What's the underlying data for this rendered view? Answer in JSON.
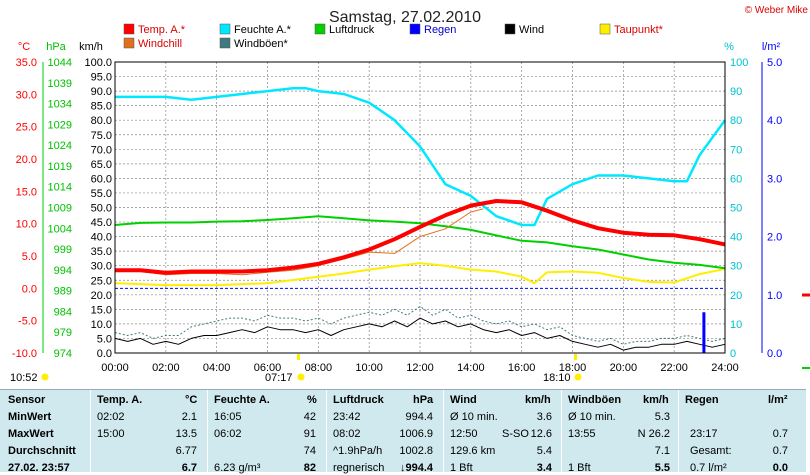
{
  "title": "Samstag, 27.02.2010",
  "copyright": "© Weber Mike",
  "colors": {
    "temp": "#ff0000",
    "windchill": "#e07020",
    "humidity": "#00e8ff",
    "pressure": "#00d000",
    "rain": "#0000ff",
    "wind": "#000000",
    "dewpoint": "#ffee00",
    "gust": "#3f7a80"
  },
  "axis_units": {
    "temp": "°C",
    "pressure": "hPa",
    "wind": "km/h",
    "humidity": "%",
    "rain": "l/m²"
  },
  "legend": [
    {
      "label": "Temp. A.*",
      "color": "#ff0000"
    },
    {
      "label": "Feuchte A.*",
      "color": "#00e8ff"
    },
    {
      "label": "Luftdruck",
      "color": "#00d000"
    },
    {
      "label": "Regen",
      "color": "#0000ff"
    },
    {
      "label": "Wind",
      "color": "#000000"
    },
    {
      "label": "Taupunkt*",
      "color": "#ffee00"
    },
    {
      "label": "Windchill",
      "color": "#e07020"
    },
    {
      "label": "Windböen*",
      "color": "#3f7a80"
    }
  ],
  "sun": {
    "sunrise_marker": "07:17",
    "sunset_marker": "18:10",
    "daylight": "10:52"
  },
  "chart_data": {
    "type": "line",
    "title": "Samstag, 27.02.2010",
    "x_ticks": [
      "00:00",
      "02:00",
      "04:00",
      "06:00",
      "08:00",
      "10:00",
      "12:00",
      "14:00",
      "16:00",
      "18:00",
      "20:00",
      "22:00",
      "24:00"
    ],
    "x_range_hours": [
      0,
      24
    ],
    "axes": {
      "temp": {
        "unit": "°C",
        "range": [
          -10,
          35
        ],
        "ticks": [
          "35.0",
          "30.0",
          "25.0",
          "20.0",
          "15.0",
          "10.0",
          "5.0",
          "0.0",
          "-5.0",
          "-10.0"
        ]
      },
      "pressure": {
        "unit": "hPa",
        "range": [
          974,
          1044
        ],
        "ticks": [
          "1044",
          "1039",
          "1034",
          "1029",
          "1024",
          "1019",
          "1014",
          "1009",
          "1004",
          "999",
          "994",
          "989",
          "984",
          "979",
          "974"
        ]
      },
      "wind": {
        "unit": "km/h",
        "range": [
          0,
          100
        ],
        "ticks": [
          "100.0",
          "95.0",
          "90.0",
          "85.0",
          "80.0",
          "75.0",
          "70.0",
          "65.0",
          "60.0",
          "55.0",
          "50.0",
          "45.0",
          "40.0",
          "35.0",
          "30.0",
          "25.0",
          "20.0",
          "15.0",
          "10.0",
          "5.0",
          "0.0"
        ]
      },
      "humidity": {
        "unit": "%",
        "range": [
          0,
          100
        ],
        "ticks": [
          "100",
          "90",
          "80",
          "70",
          "60",
          "50",
          "40",
          "30",
          "20",
          "10",
          "0"
        ]
      },
      "rain": {
        "unit": "l/m²",
        "range": [
          0,
          5
        ],
        "ticks": [
          "5.0",
          "4.0",
          "3.0",
          "2.0",
          "1.0",
          "0.0"
        ]
      }
    },
    "grid": true,
    "series": [
      {
        "name": "Temp. A.*",
        "axis": "temp",
        "x": [
          0,
          1,
          2,
          3,
          4,
          5,
          6,
          7,
          8,
          9,
          10,
          11,
          12,
          13,
          14,
          15,
          16,
          17,
          18,
          19,
          20,
          21,
          22,
          23,
          24
        ],
        "values": [
          2.8,
          2.8,
          2.4,
          2.6,
          2.6,
          2.6,
          2.8,
          3.2,
          3.8,
          4.8,
          6.0,
          7.6,
          9.5,
          11.3,
          12.8,
          13.5,
          13.3,
          12.0,
          10.5,
          9.3,
          8.6,
          8.3,
          8.2,
          7.6,
          6.8
        ]
      },
      {
        "name": "Windchill",
        "axis": "temp",
        "x": [
          0,
          1,
          2,
          3,
          4,
          5,
          6,
          7,
          8,
          9,
          10,
          11,
          12,
          13,
          14,
          14.5
        ],
        "values": [
          2.6,
          2.6,
          2.1,
          2.3,
          2.3,
          2.1,
          2.5,
          2.8,
          3.5,
          4.5,
          5.6,
          5.4,
          8.0,
          9.2,
          11.8,
          12.3
        ]
      },
      {
        "name": "Feuchte A.*",
        "axis": "humidity",
        "x": [
          0,
          1,
          2,
          3,
          4,
          5,
          6,
          7,
          7.5,
          8,
          9,
          10,
          11,
          12,
          13,
          14,
          15,
          16,
          16.5,
          17,
          18,
          19,
          20,
          21,
          22,
          22.5,
          23,
          24
        ],
        "values": [
          88,
          88,
          88,
          87,
          88,
          89,
          90,
          91,
          91,
          90,
          89,
          86,
          80,
          71,
          58,
          54,
          47,
          44,
          44,
          53,
          58,
          61,
          61,
          60,
          59,
          59,
          68,
          80
        ]
      },
      {
        "name": "Luftdruck",
        "axis": "pressure",
        "x": [
          0,
          1,
          2,
          3,
          4,
          5,
          6,
          7,
          8,
          9,
          10,
          11,
          12,
          13,
          14,
          15,
          16,
          17,
          18,
          19,
          20,
          21,
          22,
          23,
          24
        ],
        "values": [
          1004.8,
          1005.3,
          1005.4,
          1005.4,
          1005.6,
          1005.7,
          1006.0,
          1006.4,
          1006.9,
          1006.4,
          1005.9,
          1005.6,
          1005.2,
          1004.5,
          1003.6,
          1002.3,
          1001.0,
          1000.6,
          999.7,
          998.9,
          997.7,
          996.5,
          995.7,
          995.2,
          994.4
        ]
      },
      {
        "name": "Taupunkt*",
        "axis": "temp",
        "x": [
          0,
          2,
          4,
          6,
          8,
          9,
          10,
          11,
          12,
          13,
          14,
          15,
          16,
          16.5,
          17,
          18,
          19,
          20,
          21,
          22,
          23,
          24
        ],
        "values": [
          0.8,
          0.5,
          0.5,
          0.8,
          1.8,
          2.3,
          2.9,
          3.4,
          3.9,
          3.5,
          2.9,
          2.6,
          1.8,
          0.8,
          2.5,
          2.6,
          2.4,
          1.6,
          1.0,
          0.9,
          2.2,
          3.0
        ]
      },
      {
        "name": "Wind",
        "axis": "wind",
        "x": [
          0,
          0.5,
          1,
          1.5,
          2,
          2.5,
          3,
          3.5,
          4,
          4.5,
          5,
          5.5,
          6,
          6.5,
          7,
          7.5,
          8,
          8.5,
          9,
          9.5,
          10,
          10.5,
          11,
          11.5,
          12,
          12.5,
          13,
          13.5,
          14,
          14.5,
          15,
          15.5,
          16,
          16.5,
          17,
          17.5,
          18,
          18.5,
          19,
          19.5,
          20,
          20.5,
          21,
          21.5,
          22,
          22.5,
          23,
          23.5,
          24
        ],
        "values": [
          5,
          4,
          5,
          3,
          4,
          3,
          5,
          6,
          6,
          7,
          8,
          7,
          9,
          8,
          8,
          7,
          8,
          6,
          8,
          9,
          10,
          9,
          11,
          9,
          12,
          10,
          11,
          9,
          10,
          8,
          7,
          8,
          6,
          7,
          5,
          6,
          4,
          3,
          2,
          3,
          1,
          2,
          2,
          3,
          3,
          4,
          3,
          2,
          3
        ]
      },
      {
        "name": "Windböen*",
        "axis": "wind",
        "x": [
          0,
          0.5,
          1,
          1.5,
          2,
          2.5,
          3,
          3.5,
          4,
          4.5,
          5,
          5.5,
          6,
          6.5,
          7,
          7.5,
          8,
          8.5,
          9,
          9.5,
          10,
          10.5,
          11,
          11.5,
          12,
          12.5,
          13,
          13.5,
          14,
          14.5,
          15,
          15.5,
          16,
          16.5,
          17,
          17.5,
          18,
          18.5,
          19,
          19.5,
          20,
          20.5,
          21,
          21.5,
          22,
          22.5,
          23,
          23.5,
          24
        ],
        "values": [
          7,
          6,
          7,
          5,
          6,
          6,
          9,
          10,
          11,
          12,
          12,
          11,
          13,
          12,
          12,
          11,
          12,
          10,
          12,
          13,
          14,
          13,
          15,
          13,
          16,
          13,
          15,
          12,
          13,
          11,
          10,
          11,
          9,
          10,
          8,
          9,
          6,
          5,
          4,
          5,
          3,
          4,
          4,
          5,
          5,
          6,
          5,
          4,
          5
        ]
      },
      {
        "name": "Regen",
        "axis": "rain",
        "type": "bar",
        "x": [
          23.17
        ],
        "values": [
          0.7
        ]
      }
    ],
    "reference_lines": [
      {
        "axis": "temp",
        "value": 0,
        "style": "dashed",
        "color": "#0000ff"
      }
    ]
  },
  "stats": {
    "headers": {
      "sensor": "Sensor",
      "temp": "Temp. A.",
      "temp_unit": "°C",
      "hum": "Feuchte A.",
      "hum_unit": "%",
      "press": "Luftdruck",
      "press_unit": "hPa",
      "wind": "Wind",
      "wind_unit": "km/h",
      "gust": "Windböen",
      "gust_unit": "km/h",
      "rain": "Regen",
      "rain_unit": "l/m²"
    },
    "rows": [
      {
        "label": "MinWert",
        "temp_t": "02:02",
        "temp_v": "2.1",
        "hum_t": "16:05",
        "hum_v": "42",
        "press_t": "23:42",
        "press_v": "994.4",
        "wind_t": "Ø 10 min.",
        "wind_d": "",
        "wind_v": "3.6",
        "gust_t": "Ø 10 min.",
        "gust_v": "5.3",
        "rain_t": "",
        "rain_v": ""
      },
      {
        "label": "MaxWert",
        "temp_t": "15:00",
        "temp_v": "13.5",
        "hum_t": "06:02",
        "hum_v": "91",
        "press_t": "08:02",
        "press_v": "1006.9",
        "wind_t": "12:50",
        "wind_d": "S-SO",
        "wind_v": "12.6",
        "gust_t": "13:55",
        "gust_v": "N 26.2",
        "rain_t": "23:17",
        "rain_v": "0.7"
      },
      {
        "label": "Durchschnitt",
        "temp_t": "",
        "temp_v": "6.77",
        "hum_t": "",
        "hum_v": "74",
        "press_t": "^1.9hPa/h",
        "press_v": "1002.8",
        "wind_t": "129.6 km",
        "wind_d": "",
        "wind_v": "5.4",
        "gust_t": "",
        "gust_v": "7.1",
        "rain_t": "Gesamt:",
        "rain_v": "0.7"
      },
      {
        "label": "27.02. 23:57",
        "temp_t": "",
        "temp_v": "6.7",
        "hum_t": "6.23 g/m³",
        "hum_v": "82",
        "press_t": "regnerisch",
        "press_v": "↓994.4",
        "wind_t": "1 Bft",
        "wind_d": "",
        "wind_v": "3.4",
        "gust_t": "1 Bft",
        "gust_v": "5.5",
        "rain_t": "0.7 l/m²",
        "rain_v": "0.0"
      }
    ]
  }
}
